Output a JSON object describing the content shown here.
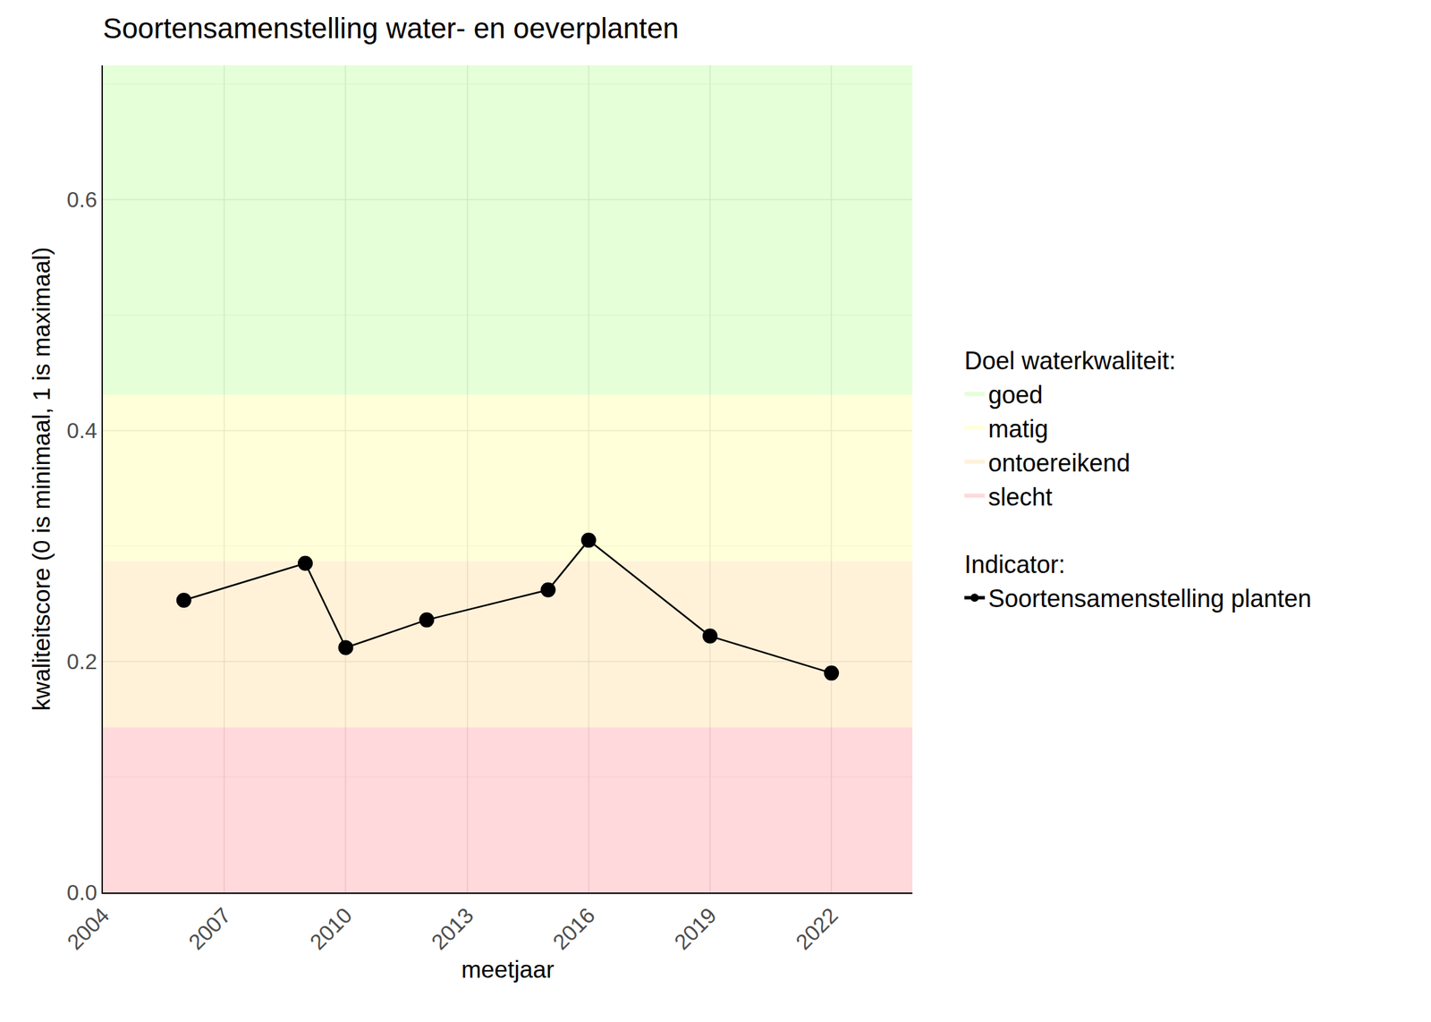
{
  "chart_data": {
    "type": "line",
    "title": "Soortensamenstelling water- en oeverplanten",
    "x_label": "meetjaar",
    "y_label": "kwaliteitscore (0 is minimaal, 1 is maximaal)",
    "x": [
      2006,
      2009,
      2010,
      2012,
      2015,
      2016,
      2019,
      2022
    ],
    "series": [
      {
        "name": "Soortensamenstelling planten",
        "color": "#000000",
        "marker": "circle",
        "line_style": "solid",
        "values": [
          0.253,
          0.285,
          0.212,
          0.236,
          0.262,
          0.305,
          0.222,
          0.19
        ]
      }
    ],
    "series_legend_title": "Indicator:",
    "bands_legend_title": "Doel waterkwaliteit:",
    "bands": [
      {
        "name": "goed",
        "from": 0.431,
        "to": 0.716,
        "color": "#ccffb3"
      },
      {
        "name": "matig",
        "from": 0.287,
        "to": 0.431,
        "color": "#ffffb3"
      },
      {
        "name": "ontoereikend",
        "from": 0.143,
        "to": 0.287,
        "color": "#ffe6b3"
      },
      {
        "name": "slecht",
        "from": 0,
        "to": 0.143,
        "color": "#ffb3b8"
      }
    ],
    "xlim": [
      2004,
      2024
    ],
    "ylim": [
      0,
      0.716
    ],
    "xticks": [
      2004,
      2007,
      2010,
      2013,
      2016,
      2019,
      2022
    ],
    "yticks": [
      {
        "value": 0,
        "label": "0.0"
      },
      0.2,
      0.4,
      0.6
    ],
    "grid": true,
    "legend": "right"
  }
}
